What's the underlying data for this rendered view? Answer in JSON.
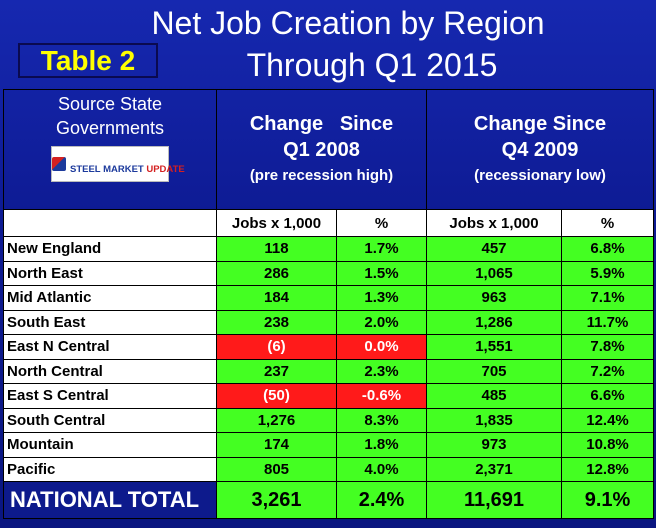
{
  "title": {
    "line1": "Net Job Creation by Region",
    "line2": "Through Q1 2015"
  },
  "tag": "Table 2",
  "source": {
    "line1": "Source State",
    "line2": "Governments",
    "logo_brand": "STEEL MARKET",
    "logo_word": "UPDATE"
  },
  "groups": [
    {
      "line1": "Change   Since",
      "line2": "Q1 2008",
      "line3": "(pre recession high)"
    },
    {
      "line1": "Change Since",
      "line2": "Q4 2009",
      "line3": "(recessionary low)"
    }
  ],
  "columns": [
    "Jobs x 1,000",
    "%",
    "Jobs x 1,000",
    "%"
  ],
  "rows": [
    {
      "region": "New England",
      "jobs1": "118",
      "pct1": "1.7%",
      "jobs2": "457",
      "pct2": "6.8%"
    },
    {
      "region": "North East",
      "jobs1": "286",
      "pct1": "1.5%",
      "jobs2": "1,065",
      "pct2": "5.9%"
    },
    {
      "region": "Mid Atlantic",
      "jobs1": "184",
      "pct1": "1.3%",
      "jobs2": "963",
      "pct2": "7.1%"
    },
    {
      "region": "South East",
      "jobs1": "238",
      "pct1": "2.0%",
      "jobs2": "1,286",
      "pct2": "11.7%"
    },
    {
      "region": "East N Central",
      "jobs1": "(6)",
      "pct1": "0.0%",
      "jobs2": "1,551",
      "pct2": "7.8%"
    },
    {
      "region": "North Central",
      "jobs1": "237",
      "pct1": "2.3%",
      "jobs2": "705",
      "pct2": "7.2%"
    },
    {
      "region": "East S Central",
      "jobs1": "(50)",
      "pct1": "-0.6%",
      "jobs2": "485",
      "pct2": "6.6%"
    },
    {
      "region": "South Central",
      "jobs1": "1,276",
      "pct1": "8.3%",
      "jobs2": "1,835",
      "pct2": "12.4%"
    },
    {
      "region": "Mountain",
      "jobs1": "174",
      "pct1": "1.8%",
      "jobs2": "973",
      "pct2": "10.8%"
    },
    {
      "region": "Pacific",
      "jobs1": "805",
      "pct1": "4.0%",
      "jobs2": "2,371",
      "pct2": "12.8%"
    }
  ],
  "total": {
    "label": "NATIONAL TOTAL",
    "jobs1": "3,261",
    "pct1": "2.4%",
    "jobs2": "11,691",
    "pct2": "9.1%"
  },
  "colors": {
    "background": "#0d1a8c",
    "positive": "#44ff22",
    "negative": "#ff1a1a",
    "tag_text": "#ffff00"
  }
}
